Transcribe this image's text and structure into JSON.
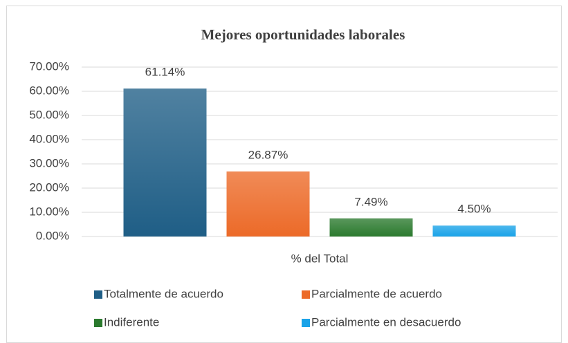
{
  "chart_data": {
    "type": "bar",
    "title": "Mejores oportunidades laborales",
    "categories": [
      "% del Total"
    ],
    "series": [
      {
        "name": "Totalmente de acuerdo",
        "color": "#1f5e86",
        "values": [
          61.14
        ],
        "value_labels": [
          "61.14%"
        ]
      },
      {
        "name": "Parcialmente de acuerdo",
        "color": "#ec6a28",
        "values": [
          26.87
        ],
        "value_labels": [
          "26.87%"
        ]
      },
      {
        "name": "Indiferente",
        "color": "#2b7a2e",
        "values": [
          7.49
        ],
        "value_labels": [
          "7.49%"
        ]
      },
      {
        "name": "Parcialmente en desacuerdo",
        "color": "#1aa3e8",
        "values": [
          4.5
        ],
        "value_labels": [
          "4.50%"
        ]
      }
    ],
    "ylim": [
      0,
      70
    ],
    "yticks": [
      {
        "value": 0,
        "label": "0.00%"
      },
      {
        "value": 10,
        "label": "10.00%"
      },
      {
        "value": 20,
        "label": "20.00%"
      },
      {
        "value": 30,
        "label": "30.00%"
      },
      {
        "value": 40,
        "label": "40.00%"
      },
      {
        "value": 50,
        "label": "50.00%"
      },
      {
        "value": 60,
        "label": "60.00%"
      },
      {
        "value": 70,
        "label": "70.00%"
      }
    ],
    "grid": true,
    "legend": "bottom"
  }
}
